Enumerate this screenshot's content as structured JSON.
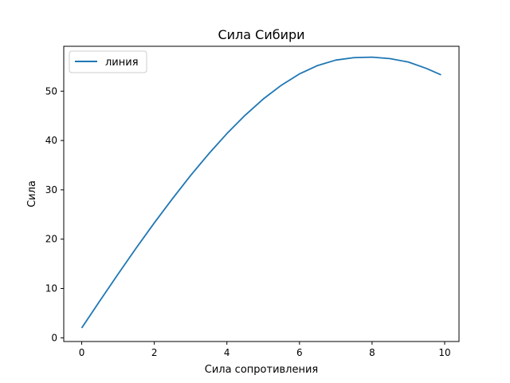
{
  "chart_data": {
    "type": "line",
    "title": "Сила Сибири",
    "xlabel": "Сила сопротивления",
    "ylabel": "Сила",
    "xlim": [
      -0.495,
      10.395
    ],
    "ylim": [
      -0.75,
      59.1
    ],
    "xticks": [
      0,
      2,
      4,
      6,
      8,
      10
    ],
    "yticks": [
      0,
      10,
      20,
      30,
      40,
      50
    ],
    "grid": false,
    "legend": {
      "position": "top-left",
      "entries": [
        "линия"
      ]
    },
    "series": [
      {
        "name": "линия",
        "color": "#1f77b4",
        "x": [
          0.0,
          0.5,
          1.0,
          1.5,
          2.0,
          2.5,
          3.0,
          3.5,
          4.0,
          4.5,
          5.0,
          5.5,
          6.0,
          6.5,
          7.0,
          7.5,
          8.0,
          8.5,
          9.0,
          9.5,
          9.9
        ],
        "y": [
          2.0,
          7.5,
          12.9,
          18.2,
          23.3,
          28.2,
          32.9,
          37.3,
          41.4,
          45.1,
          48.4,
          51.2,
          53.5,
          55.2,
          56.3,
          56.8,
          56.9,
          56.6,
          55.9,
          54.6,
          53.3
        ]
      }
    ]
  }
}
